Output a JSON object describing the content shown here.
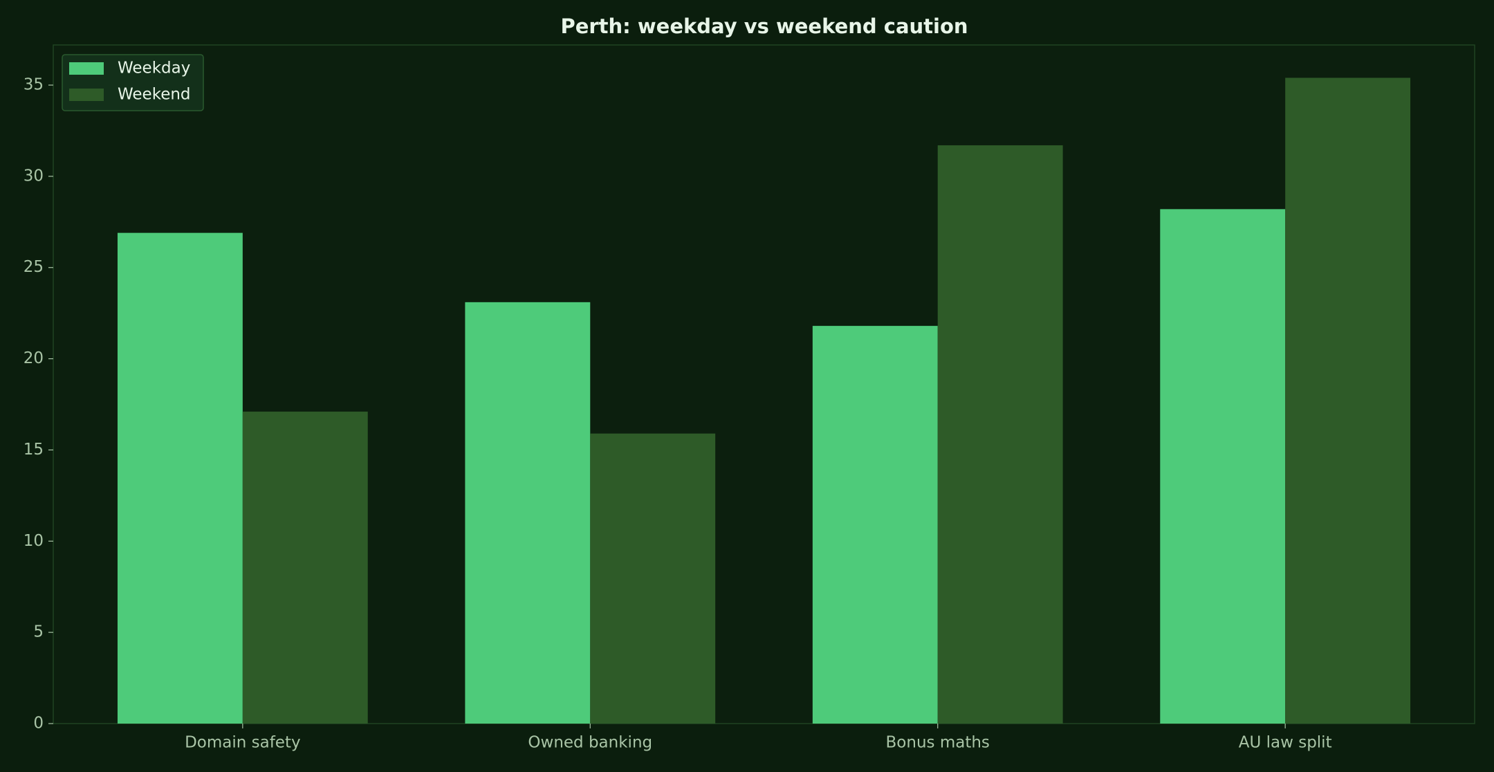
{
  "chart_data": {
    "type": "bar",
    "title": "Perth: weekday vs weekend caution",
    "categories": [
      "Domain safety",
      "Owned banking",
      "Bonus maths",
      "AU law split"
    ],
    "series": [
      {
        "name": "Weekday",
        "color": "#4ecb7a",
        "values": [
          26.9,
          23.1,
          21.8,
          28.2
        ]
      },
      {
        "name": "Weekend",
        "color": "#2e5b28",
        "values": [
          17.1,
          15.9,
          31.7,
          35.4
        ]
      }
    ],
    "ylim": [
      0,
      37.2
    ],
    "yticks": [
      0,
      5,
      10,
      15,
      20,
      25,
      30,
      35
    ],
    "grid": false,
    "legend": "upper left"
  }
}
